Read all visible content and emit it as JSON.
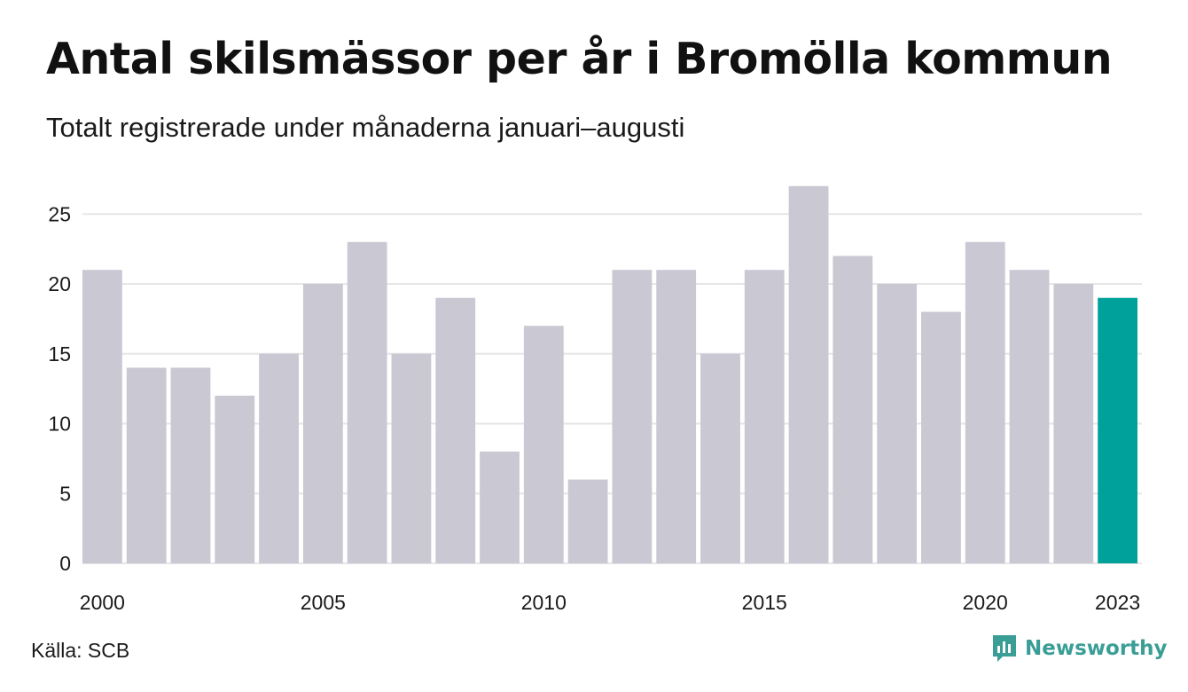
{
  "header": {
    "title": "Antal skilsmässor per år i Bromölla kommun",
    "subtitle": "Totalt registrerade under månaderna januari–augusti"
  },
  "footer": {
    "source": "Källa: SCB",
    "brand": "Newsworthy",
    "brand_icon": "chart-speech-bubble-icon"
  },
  "colors": {
    "bar": "#c9c8d3",
    "highlight": "#00a19a",
    "grid": "#e6e6e6",
    "brand": "#3a9e97"
  },
  "chart_data": {
    "type": "bar",
    "title": "Antal skilsmässor per år i Bromölla kommun",
    "subtitle": "Totalt registrerade under månaderna januari–augusti",
    "categories": [
      "2000",
      "2001",
      "2002",
      "2003",
      "2004",
      "2005",
      "2006",
      "2007",
      "2008",
      "2009",
      "2010",
      "2011",
      "2012",
      "2013",
      "2014",
      "2015",
      "2016",
      "2017",
      "2018",
      "2019",
      "2020",
      "2021",
      "2022",
      "2023"
    ],
    "values": [
      21,
      14,
      14,
      12,
      15,
      20,
      23,
      15,
      19,
      8,
      17,
      6,
      21,
      21,
      15,
      21,
      27,
      22,
      20,
      18,
      23,
      21,
      20,
      19
    ],
    "highlight_index": 23,
    "x_tick_labels": [
      "2000",
      "2005",
      "2010",
      "2015",
      "2020",
      "2023"
    ],
    "y_ticks": [
      0,
      5,
      10,
      15,
      20,
      25
    ],
    "ylim": [
      0,
      27
    ],
    "xlabel": "",
    "ylabel": "",
    "grid": true,
    "legend": "none"
  }
}
